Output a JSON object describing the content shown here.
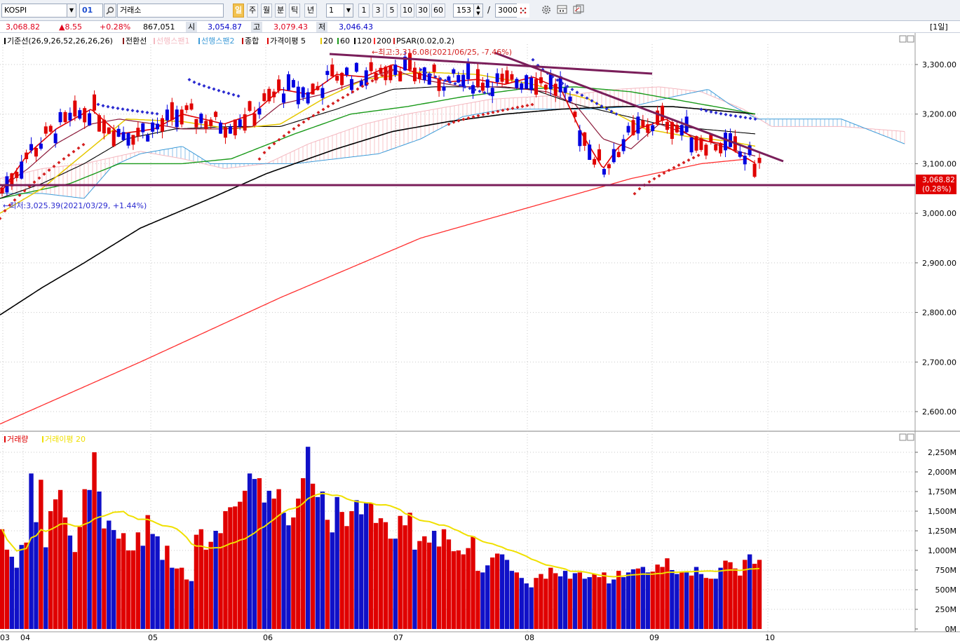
{
  "toolbar": {
    "symbol": "KOSPI",
    "code": "01",
    "market": "거래소",
    "period_buttons": [
      "일",
      "주",
      "월",
      "분",
      "틱",
      "년"
    ],
    "period_selected": "일",
    "interval_value": "1",
    "quick_intervals": [
      "1",
      "3",
      "5",
      "10",
      "30",
      "60"
    ],
    "count_value": "153",
    "separator": "/",
    "total_value": "3000",
    "tool_icons": [
      "settings-gear-icon",
      "indicator-panel-icon",
      "chart-compare-icon"
    ]
  },
  "quote": {
    "price": "3,068.82",
    "change": "▲8.55",
    "change_pct": "+0.28%",
    "volume": "867,051",
    "open_label": "시",
    "open": "3,054.87",
    "high_label": "고",
    "high": "3,079.43",
    "low_label": "저",
    "low": "3,046.43",
    "period_badge": "[1일]"
  },
  "price_panel": {
    "legend": [
      {
        "text": "기준선(26,9,26,52,26,26,26)",
        "color": "#000000"
      },
      {
        "text": "전환선",
        "color": "#8b1a1a"
      },
      {
        "text": "선행스팬1",
        "color": "#f4b8c0"
      },
      {
        "text": "선행스팬2",
        "color": "#3d9bd8"
      },
      {
        "text": "종합",
        "color": "#c00000"
      },
      {
        "text": "가격이평 5",
        "color": "#e00000"
      },
      {
        "text": "20",
        "color": "#e6c800"
      },
      {
        "text": "60",
        "color": "#1a9a1a"
      },
      {
        "text": "120",
        "color": "#000000"
      },
      {
        "text": "200",
        "color": "#ff3030"
      },
      {
        "text": "PSAR(0.02,0.2)",
        "color": "#d42020"
      }
    ],
    "annotation_high": "←최고:3,316.08(2021/06/25, -7.46%)",
    "annotation_low": "←최저:3,025.39(2021/03/29, +1.44%)",
    "last_price_tag": "3,068.82",
    "last_pct_tag": "(0.28%)",
    "y_ticks": [
      "3,300.00",
      "3,200.00",
      "3,100.00",
      "3,000.00",
      "2,900.00",
      "2,800.00",
      "2,700.00",
      "2,600.00"
    ]
  },
  "volume_panel": {
    "legend": [
      {
        "text": "거래량",
        "color": "#e00000"
      },
      {
        "text": "거래이평 20",
        "color": "#f0e000"
      }
    ],
    "y_ticks": [
      "2,250M",
      "2,000M",
      "1,750M",
      "1,500M",
      "1,250M",
      "1,000M",
      "750M",
      "500M",
      "250M",
      "0M"
    ]
  },
  "x_ticks": [
    "03",
    "04",
    "05",
    "06",
    "07",
    "08",
    "09",
    "10"
  ],
  "chart_data": {
    "type": "candlestick",
    "symbol": "KOSPI",
    "price_ylim": [
      2570,
      3340
    ],
    "volume_ylim_millions": [
      0,
      2400
    ],
    "x_range": [
      "2021-03-26",
      "2021-10-01"
    ],
    "moving_averages": [
      "5",
      "20",
      "60",
      "120",
      "200"
    ],
    "psar": "0.02,0.2",
    "last_close": 3068.82,
    "high_mark": {
      "date": "2021-06-25",
      "value": 3316.08,
      "pct_from_last": -7.46
    },
    "low_mark": {
      "date": "2021-03-29",
      "value": 3025.39,
      "pct_from_last": 1.44
    },
    "volume_bars_m": [
      1270,
      1010,
      920,
      780,
      1070,
      1100,
      1980,
      1360,
      1900,
      1040,
      1500,
      1650,
      1770,
      1420,
      1190,
      980,
      1300,
      1780,
      1770,
      2250,
      1750,
      1280,
      1380,
      1260,
      1150,
      1220,
      1000,
      1000,
      1230,
      1060,
      1450,
      1210,
      1180,
      880,
      1060,
      780,
      770,
      780,
      630,
      610,
      1200,
      1270,
      1010,
      1110,
      1250,
      1220,
      1500,
      1550,
      1560,
      1620,
      1760,
      1980,
      1910,
      1920,
      1610,
      1760,
      1660,
      1780,
      1480,
      1320,
      1420,
      1660,
      1920,
      2320,
      1850,
      1680,
      1750,
      1390,
      1230,
      1680,
      1490,
      1310,
      1500,
      1640,
      1460,
      1610,
      1600,
      1350,
      1410,
      1360,
      1150,
      1150,
      1440,
      1320,
      1480,
      1010,
      1120,
      1180,
      1100,
      1250,
      1050,
      1270,
      1140,
      990,
      1000,
      950,
      1030,
      1180,
      740,
      720,
      810,
      910,
      960,
      950,
      880,
      740,
      720,
      650,
      580,
      530,
      650,
      700,
      640,
      780,
      710,
      670,
      740,
      640,
      710,
      720,
      640,
      660,
      700,
      660,
      720,
      580,
      630,
      740,
      660,
      720,
      760,
      770,
      790,
      720,
      730,
      820,
      790,
      900,
      750,
      700,
      730,
      720,
      680,
      790,
      700,
      650,
      640,
      640,
      780,
      870,
      850,
      770,
      680,
      880,
      950,
      830,
      880
    ]
  }
}
